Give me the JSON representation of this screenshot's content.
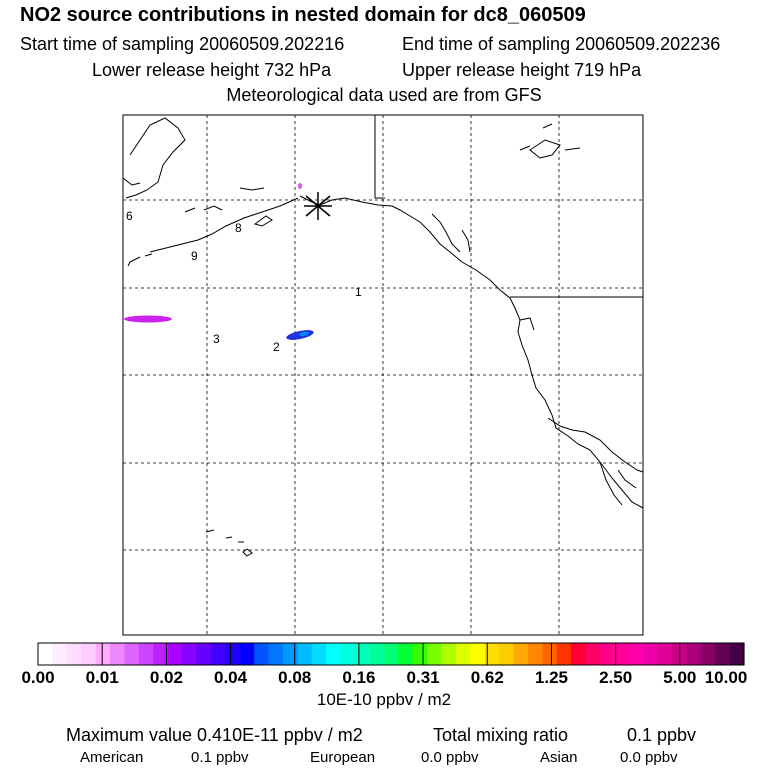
{
  "header": {
    "title": "NO2 source contributions in nested domain for dc8_060509",
    "start_time": "Start time of sampling 20060509.202216",
    "end_time": "End time of sampling 20060509.202236",
    "lower_height": "Lower release height  732 hPa",
    "upper_height": "Upper release height  719 hPa",
    "met_data": "Meteorological data used are from GFS"
  },
  "map": {
    "region": "North Pacific / western North America",
    "source_marker": "receptor-star",
    "point_labels": [
      "6",
      "8",
      "9",
      "1",
      "3",
      "2"
    ],
    "plume_colors": {
      "west": "#cc22ee",
      "center": "#2233dd",
      "center_core": "#0088ff",
      "north": "#dd55ee"
    }
  },
  "colorbar": {
    "colors": [
      "#ffffff",
      "#ffeeff",
      "#ffddff",
      "#ffccff",
      "#ffaaff",
      "#ee88ff",
      "#dd66ff",
      "#cc44ff",
      "#bb22ff",
      "#aa00ff",
      "#8800ff",
      "#6600ff",
      "#4400ff",
      "#2200ff",
      "#0000ff",
      "#0055ff",
      "#0077ff",
      "#0099ff",
      "#00bbff",
      "#00ddff",
      "#00ffff",
      "#00ffdd",
      "#00ffbb",
      "#00ff99",
      "#00ff77",
      "#00ff33",
      "#33ff00",
      "#77ff00",
      "#aaff00",
      "#ddff00",
      "#ffff00",
      "#ffdd00",
      "#ffcc00",
      "#ffaa00",
      "#ff8800",
      "#ff6600",
      "#ff3300",
      "#ff0033",
      "#ff0066",
      "#ff0088",
      "#ff0099",
      "#ff00aa",
      "#ee00aa",
      "#dd0099",
      "#cc0088",
      "#aa0077",
      "#880066",
      "#660055",
      "#440044"
    ],
    "tick_labels": [
      "0.00",
      "0.01",
      "0.02",
      "0.04",
      "0.08",
      "0.16",
      "0.31",
      "0.62",
      "1.25",
      "2.50",
      "5.00",
      "10.00"
    ],
    "units": "10E-10 ppbv / m2"
  },
  "footer": {
    "max_value": "Maximum value  0.410E-11 ppbv / m2",
    "total_label": "Total mixing ratio",
    "total_value": "0.1 ppbv",
    "american_label": "American",
    "american_value": "0.1 ppbv",
    "european_label": "European",
    "european_value": "0.0 ppbv",
    "asian_label": "Asian",
    "asian_value": "0.0 ppbv"
  }
}
